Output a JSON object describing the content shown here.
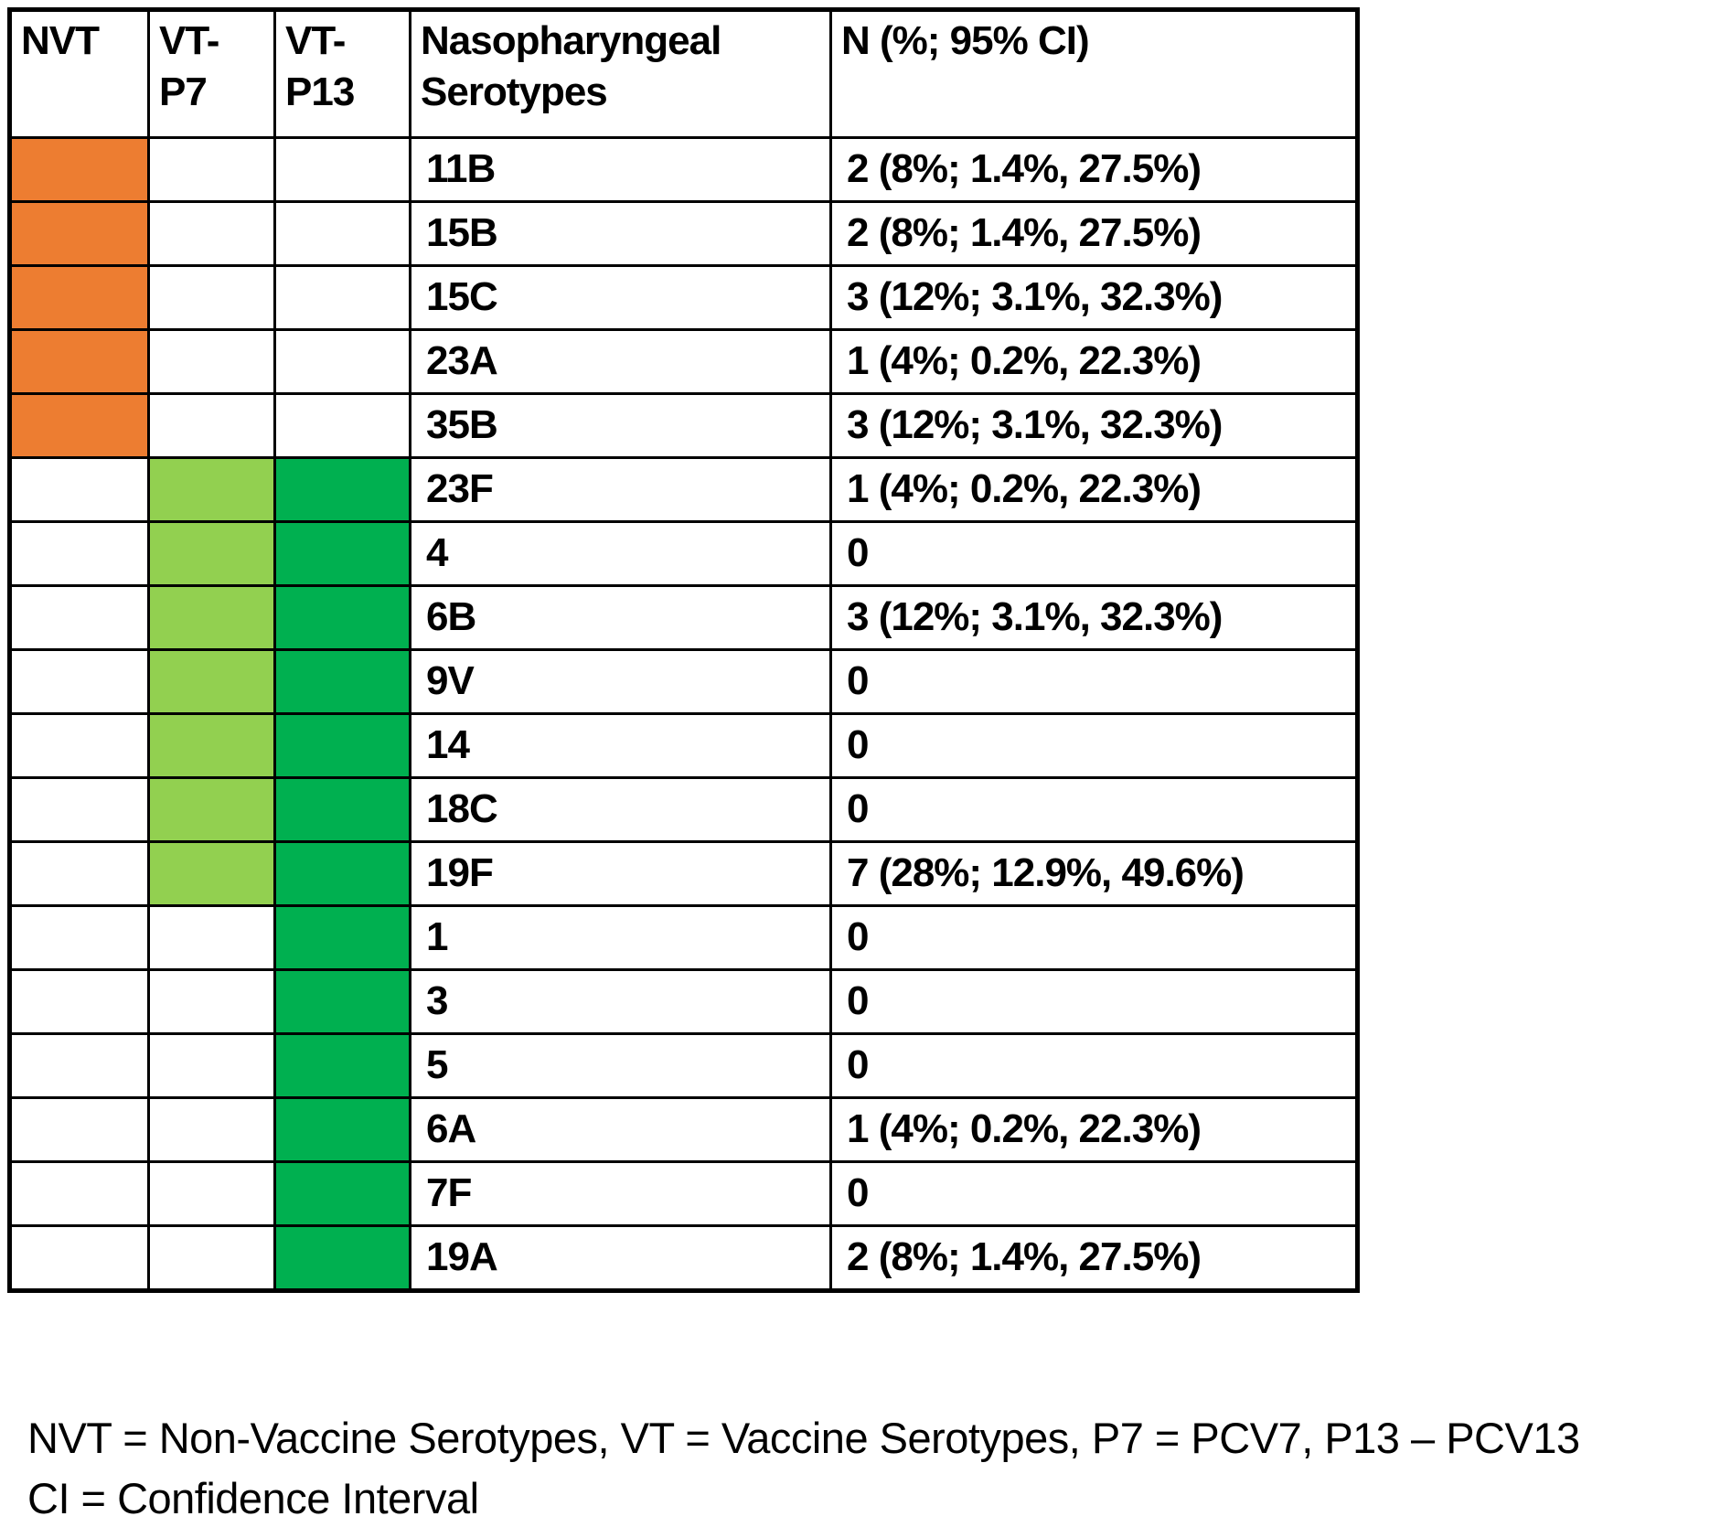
{
  "colors": {
    "orange": "#ED7D31",
    "light_green": "#92D050",
    "green": "#00B050",
    "border": "#000000",
    "background": "#FFFFFF"
  },
  "table": {
    "headers": {
      "nvt": "NVT",
      "vt_p7": "VT-P7",
      "vt_p13": "VT-P13",
      "serotypes": "Nasopharyngeal Serotypes",
      "n": "N (%; 95% CI)"
    },
    "legend_meaning": {
      "orange": "NVT",
      "light_green": "VT-P7",
      "green": "VT-P13"
    },
    "rows": [
      {
        "serotype": "11B",
        "n": "2 (8%; 1.4%, 27.5%)",
        "nvt": true,
        "vt_p7": false,
        "vt_p13": false
      },
      {
        "serotype": "15B",
        "n": "2 (8%; 1.4%, 27.5%)",
        "nvt": true,
        "vt_p7": false,
        "vt_p13": false
      },
      {
        "serotype": "15C",
        "n": "3 (12%; 3.1%, 32.3%)",
        "nvt": true,
        "vt_p7": false,
        "vt_p13": false
      },
      {
        "serotype": "23A",
        "n": "1 (4%; 0.2%, 22.3%)",
        "nvt": true,
        "vt_p7": false,
        "vt_p13": false
      },
      {
        "serotype": "35B",
        "n": "3 (12%; 3.1%, 32.3%)",
        "nvt": true,
        "vt_p7": false,
        "vt_p13": false
      },
      {
        "serotype": "23F",
        "n": "1 (4%; 0.2%, 22.3%)",
        "nvt": false,
        "vt_p7": true,
        "vt_p13": true
      },
      {
        "serotype": "4",
        "n": "0",
        "nvt": false,
        "vt_p7": true,
        "vt_p13": true
      },
      {
        "serotype": "6B",
        "n": "3 (12%; 3.1%, 32.3%)",
        "nvt": false,
        "vt_p7": true,
        "vt_p13": true
      },
      {
        "serotype": "9V",
        "n": "0",
        "nvt": false,
        "vt_p7": true,
        "vt_p13": true
      },
      {
        "serotype": "14",
        "n": "0",
        "nvt": false,
        "vt_p7": true,
        "vt_p13": true
      },
      {
        "serotype": "18C",
        "n": "0",
        "nvt": false,
        "vt_p7": true,
        "vt_p13": true
      },
      {
        "serotype": "19F",
        "n": "7 (28%; 12.9%, 49.6%)",
        "nvt": false,
        "vt_p7": true,
        "vt_p13": true
      },
      {
        "serotype": "1",
        "n": "0",
        "nvt": false,
        "vt_p7": false,
        "vt_p13": true
      },
      {
        "serotype": "3",
        "n": "0",
        "nvt": false,
        "vt_p7": false,
        "vt_p13": true
      },
      {
        "serotype": "5",
        "n": "0",
        "nvt": false,
        "vt_p7": false,
        "vt_p13": true
      },
      {
        "serotype": "6A",
        "n": "1 (4%; 0.2%, 22.3%)",
        "nvt": false,
        "vt_p7": false,
        "vt_p13": true
      },
      {
        "serotype": "7F",
        "n": "0",
        "nvt": false,
        "vt_p7": false,
        "vt_p13": true
      },
      {
        "serotype": "19A",
        "n": "2 (8%; 1.4%, 27.5%)",
        "nvt": false,
        "vt_p7": false,
        "vt_p13": true
      }
    ]
  },
  "footnotes": {
    "line1": "NVT = Non-Vaccine Serotypes, VT = Vaccine Serotypes, P7 = PCV7, P13 – PCV13",
    "line2": "CI = Confidence Interval"
  }
}
